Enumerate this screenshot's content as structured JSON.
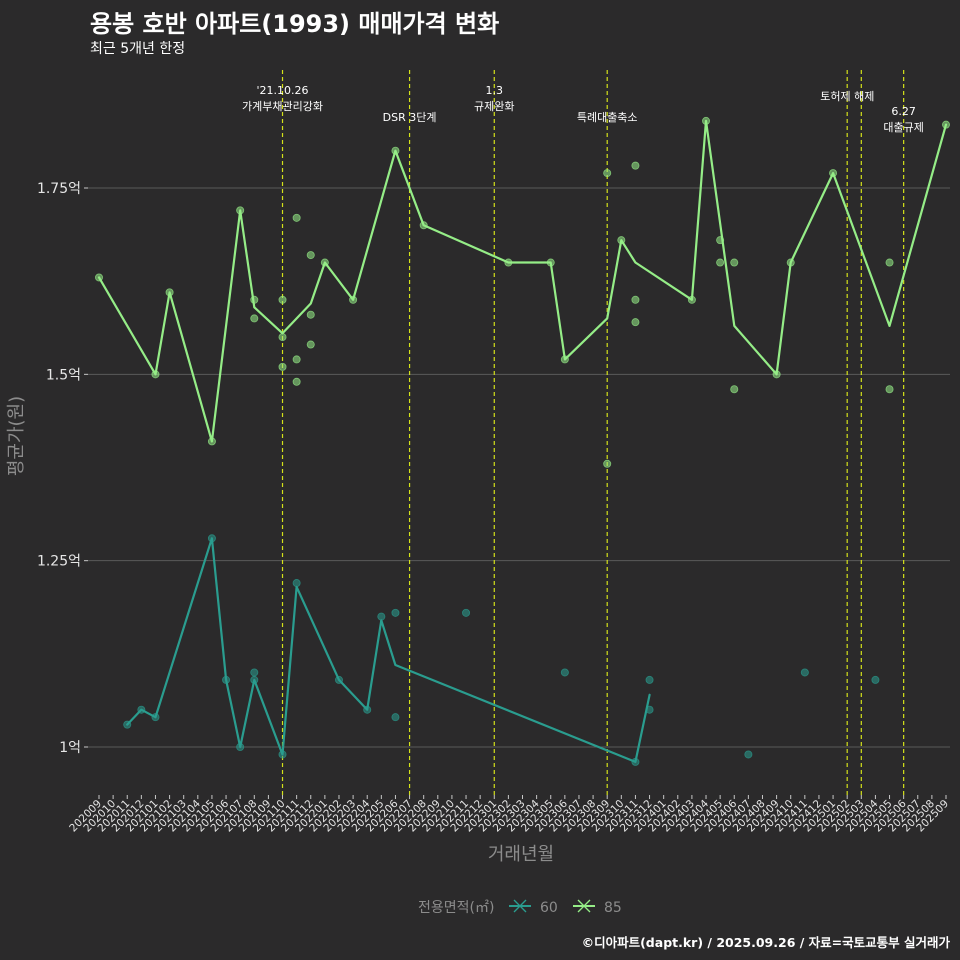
{
  "title": "용봉 호반 아파트(1993) 매매가격 변화",
  "subtitle": "최근 5개년 한정",
  "caption": "©디아파트(dapt.kr) / 2025.09.26 / 자료=국토교통부 실거래가",
  "colors": {
    "background": "#2b2a2b",
    "grid": "#5a5a5a",
    "series_60": "#2a9d8f",
    "series_85": "#95ed87",
    "vline": "#d4e21a"
  },
  "chart_data": {
    "type": "line",
    "title": "용봉 호반 아파트(1993) 매매가격 변화",
    "subtitle": "최근 5개년 한정",
    "xlabel": "거래년월",
    "ylabel": "평균가(원)",
    "grid": true,
    "legend_position": "bottom",
    "legend_title": "전용면적(㎡)",
    "x_categories": [
      "202009",
      "202010",
      "202011",
      "202012",
      "202101",
      "202102",
      "202103",
      "202104",
      "202105",
      "202106",
      "202107",
      "202108",
      "202109",
      "202110",
      "202111",
      "202112",
      "202201",
      "202202",
      "202203",
      "202204",
      "202205",
      "202206",
      "202207",
      "202208",
      "202209",
      "202210",
      "202211",
      "202212",
      "202301",
      "202302",
      "202303",
      "202304",
      "202305",
      "202306",
      "202307",
      "202308",
      "202309",
      "202310",
      "202311",
      "202312",
      "202401",
      "202402",
      "202403",
      "202404",
      "202405",
      "202406",
      "202407",
      "202408",
      "202409",
      "202410",
      "202411",
      "202412",
      "202501",
      "202502",
      "202503",
      "202504",
      "202505",
      "202506",
      "202507",
      "202508",
      "202509"
    ],
    "y_ticks": [
      {
        "value": 1.0,
        "label": "1억"
      },
      {
        "value": 1.25,
        "label": "1.25억"
      },
      {
        "value": 1.5,
        "label": "1.5억"
      },
      {
        "value": 1.75,
        "label": "1.75억"
      }
    ],
    "ylim": [
      0.94,
      1.9
    ],
    "series": [
      {
        "name": "60",
        "color": "#2a9d8f",
        "line": [
          {
            "x": "202011",
            "y": 1.03
          },
          {
            "x": "202012",
            "y": 1.05
          },
          {
            "x": "202101",
            "y": 1.04
          },
          {
            "x": "202105",
            "y": 1.28
          },
          {
            "x": "202106",
            "y": 1.09
          },
          {
            "x": "202107",
            "y": 1.0
          },
          {
            "x": "202108",
            "y": 1.09
          },
          {
            "x": "202110",
            "y": 0.99
          },
          {
            "x": "202111",
            "y": 1.215
          },
          {
            "x": "202202",
            "y": 1.09
          },
          {
            "x": "202204",
            "y": 1.05
          },
          {
            "x": "202205",
            "y": 1.17
          },
          {
            "x": "202206",
            "y": 1.11
          },
          {
            "x": "202311",
            "y": 0.98
          },
          {
            "x": "202312",
            "y": 1.07
          }
        ],
        "points": [
          {
            "x": "202011",
            "y": 1.03
          },
          {
            "x": "202012",
            "y": 1.05
          },
          {
            "x": "202101",
            "y": 1.04
          },
          {
            "x": "202105",
            "y": 1.28
          },
          {
            "x": "202106",
            "y": 1.09
          },
          {
            "x": "202107",
            "y": 1.0
          },
          {
            "x": "202108",
            "y": 1.09
          },
          {
            "x": "202108",
            "y": 1.1
          },
          {
            "x": "202110",
            "y": 0.99
          },
          {
            "x": "202111",
            "y": 1.22
          },
          {
            "x": "202202",
            "y": 1.09
          },
          {
            "x": "202204",
            "y": 1.05
          },
          {
            "x": "202205",
            "y": 1.175
          },
          {
            "x": "202206",
            "y": 1.18
          },
          {
            "x": "202206",
            "y": 1.04
          },
          {
            "x": "202211",
            "y": 1.18
          },
          {
            "x": "202306",
            "y": 1.1
          },
          {
            "x": "202311",
            "y": 0.98
          },
          {
            "x": "202312",
            "y": 1.09
          },
          {
            "x": "202312",
            "y": 1.05
          },
          {
            "x": "202407",
            "y": 0.99
          },
          {
            "x": "202411",
            "y": 1.1
          },
          {
            "x": "202504",
            "y": 1.09
          }
        ]
      },
      {
        "name": "85",
        "color": "#95ed87",
        "line": [
          {
            "x": "202009",
            "y": 1.63
          },
          {
            "x": "202101",
            "y": 1.5
          },
          {
            "x": "202102",
            "y": 1.61
          },
          {
            "x": "202105",
            "y": 1.41
          },
          {
            "x": "202107",
            "y": 1.72
          },
          {
            "x": "202108",
            "y": 1.59
          },
          {
            "x": "202110",
            "y": 1.555
          },
          {
            "x": "202112",
            "y": 1.595
          },
          {
            "x": "202201",
            "y": 1.65
          },
          {
            "x": "202203",
            "y": 1.6
          },
          {
            "x": "202206",
            "y": 1.8
          },
          {
            "x": "202208",
            "y": 1.7
          },
          {
            "x": "202302",
            "y": 1.65
          },
          {
            "x": "202305",
            "y": 1.65
          },
          {
            "x": "202306",
            "y": 1.52
          },
          {
            "x": "202309",
            "y": 1.575
          },
          {
            "x": "202310",
            "y": 1.68
          },
          {
            "x": "202311",
            "y": 1.65
          },
          {
            "x": "202403",
            "y": 1.6
          },
          {
            "x": "202404",
            "y": 1.84
          },
          {
            "x": "202406",
            "y": 1.565
          },
          {
            "x": "202409",
            "y": 1.5
          },
          {
            "x": "202410",
            "y": 1.65
          },
          {
            "x": "202501",
            "y": 1.77
          },
          {
            "x": "202505",
            "y": 1.565
          },
          {
            "x": "202509",
            "y": 1.835
          }
        ],
        "points": [
          {
            "x": "202009",
            "y": 1.63
          },
          {
            "x": "202101",
            "y": 1.5
          },
          {
            "x": "202102",
            "y": 1.61
          },
          {
            "x": "202105",
            "y": 1.41
          },
          {
            "x": "202107",
            "y": 1.72
          },
          {
            "x": "202108",
            "y": 1.6
          },
          {
            "x": "202108",
            "y": 1.575
          },
          {
            "x": "202110",
            "y": 1.6
          },
          {
            "x": "202110",
            "y": 1.55
          },
          {
            "x": "202110",
            "y": 1.51
          },
          {
            "x": "202111",
            "y": 1.71
          },
          {
            "x": "202111",
            "y": 1.52
          },
          {
            "x": "202111",
            "y": 1.49
          },
          {
            "x": "202112",
            "y": 1.66
          },
          {
            "x": "202112",
            "y": 1.58
          },
          {
            "x": "202112",
            "y": 1.54
          },
          {
            "x": "202201",
            "y": 1.65
          },
          {
            "x": "202203",
            "y": 1.6
          },
          {
            "x": "202206",
            "y": 1.8
          },
          {
            "x": "202208",
            "y": 1.7
          },
          {
            "x": "202302",
            "y": 1.65
          },
          {
            "x": "202305",
            "y": 1.65
          },
          {
            "x": "202306",
            "y": 1.52
          },
          {
            "x": "202309",
            "y": 1.77
          },
          {
            "x": "202309",
            "y": 1.38
          },
          {
            "x": "202310",
            "y": 1.68
          },
          {
            "x": "202311",
            "y": 1.78
          },
          {
            "x": "202311",
            "y": 1.6
          },
          {
            "x": "202311",
            "y": 1.57
          },
          {
            "x": "202403",
            "y": 1.6
          },
          {
            "x": "202404",
            "y": 1.84
          },
          {
            "x": "202405",
            "y": 1.68
          },
          {
            "x": "202405",
            "y": 1.65
          },
          {
            "x": "202406",
            "y": 1.65
          },
          {
            "x": "202406",
            "y": 1.48
          },
          {
            "x": "202409",
            "y": 1.5
          },
          {
            "x": "202410",
            "y": 1.65
          },
          {
            "x": "202501",
            "y": 1.77
          },
          {
            "x": "202505",
            "y": 1.65
          },
          {
            "x": "202505",
            "y": 1.48
          },
          {
            "x": "202509",
            "y": 1.835
          }
        ]
      }
    ],
    "annotations": [
      {
        "x": "202110",
        "lines": [
          "'21.10.26",
          "가계부채관리강화"
        ],
        "row": 0
      },
      {
        "x": "202207",
        "lines": [
          "DSR 3단계"
        ],
        "row": 1
      },
      {
        "x": "202301",
        "lines": [
          "1.3",
          "규제완화"
        ],
        "row": 0
      },
      {
        "x": "202309",
        "lines": [
          "특례대출축소"
        ],
        "row": 1
      },
      {
        "x": "202502",
        "lines": [],
        "row": 0
      },
      {
        "x": "202503",
        "lines": [
          "토허제 해제"
        ],
        "row": 0
      },
      {
        "x": "202506",
        "lines": [
          "6.27",
          "대출규제"
        ],
        "row": 1
      }
    ]
  }
}
